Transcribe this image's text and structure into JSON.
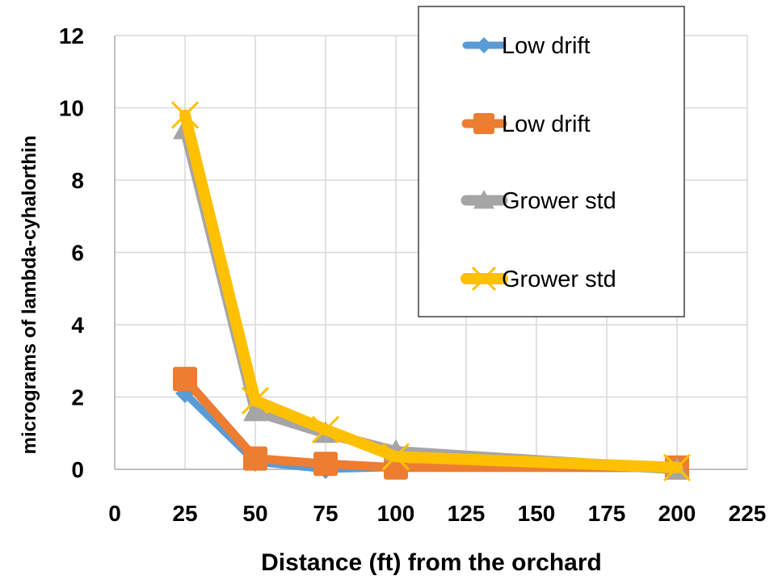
{
  "chart_data": {
    "type": "line",
    "xlabel": "Distance (ft) from the orchard",
    "ylabel": "micrograms of lambda-cyhalorthin",
    "xlim": [
      0,
      225
    ],
    "ylim": [
      0,
      12
    ],
    "x_ticks": [
      0,
      25,
      50,
      75,
      100,
      125,
      150,
      175,
      200,
      225
    ],
    "y_ticks": [
      0,
      2,
      4,
      6,
      8,
      10,
      12
    ],
    "grid": true,
    "legend_position": "top-right",
    "series": [
      {
        "name": "Low drift",
        "color": "#5B9BD5",
        "marker": "diamond",
        "points": [
          [
            25,
            2.1
          ],
          [
            50,
            0.2
          ],
          [
            75,
            0.0
          ],
          [
            100,
            0.05
          ],
          [
            200,
            0.02
          ]
        ]
      },
      {
        "name": "Low drift",
        "color": "#ED7D31",
        "marker": "square",
        "points": [
          [
            25,
            2.5
          ],
          [
            50,
            0.3
          ],
          [
            75,
            0.15
          ],
          [
            100,
            0.05
          ],
          [
            200,
            0.05
          ]
        ]
      },
      {
        "name": "Grower std",
        "color": "#A5A5A5",
        "marker": "triangle",
        "points": [
          [
            25,
            9.4
          ],
          [
            50,
            1.6
          ],
          [
            75,
            1.0
          ],
          [
            100,
            0.5
          ],
          [
            200,
            0.0
          ]
        ]
      },
      {
        "name": "Grower std",
        "color": "#FFC000",
        "marker": "x",
        "points": [
          [
            25,
            9.8
          ],
          [
            50,
            1.9
          ],
          [
            75,
            1.1
          ],
          [
            100,
            0.35
          ],
          [
            200,
            0.05
          ]
        ]
      }
    ]
  }
}
